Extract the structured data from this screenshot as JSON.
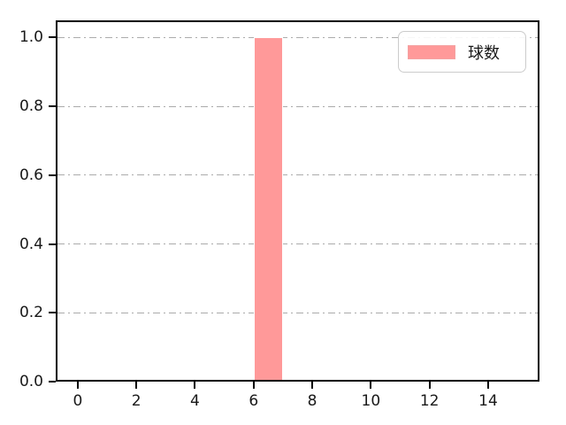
{
  "chart_data": {
    "type": "bar",
    "subtype": "histogram",
    "title": "",
    "xlabel": "",
    "ylabel": "",
    "xlim": [
      -0.75,
      15.75
    ],
    "ylim": [
      0,
      1.05
    ],
    "xticks": [
      0,
      2,
      4,
      6,
      8,
      10,
      12,
      14
    ],
    "xtick_labels": [
      "0",
      "2",
      "4",
      "6",
      "8",
      "10",
      "12",
      "14"
    ],
    "yticks": [
      0.0,
      0.2,
      0.4,
      0.6,
      0.8,
      1.0
    ],
    "ytick_labels": [
      "0.0",
      "0.2",
      "0.4",
      "0.6",
      "0.8",
      "1.0"
    ],
    "bars": [
      {
        "x0": 6,
        "x1": 7,
        "height": 1.0
      }
    ],
    "series": [
      {
        "name": "球数",
        "values": [
          1.0
        ]
      }
    ],
    "grid": {
      "axis": "y",
      "linestyle": "dash-dot",
      "color": "#ababab",
      "on": true
    },
    "legend": {
      "position": "upper-right",
      "entries": [
        {
          "label": "球数",
          "color": "#ff9999"
        }
      ]
    },
    "colors": {
      "bar_fill": "#ff9999",
      "bar_edge": "#ffffff",
      "spine": "#000000",
      "tick_label": "#191919",
      "background": "#ffffff"
    }
  }
}
